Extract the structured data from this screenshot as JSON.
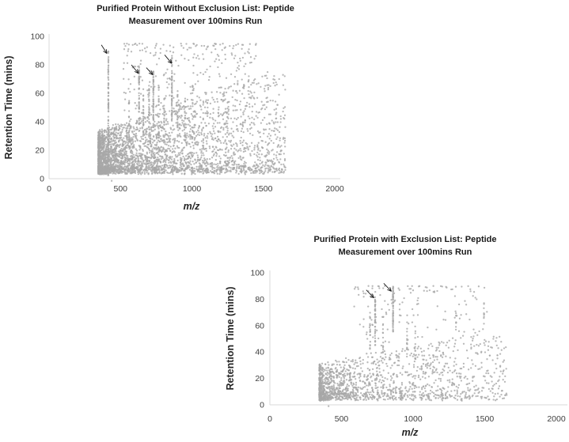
{
  "figure": {
    "background": "#ffffff",
    "description": "Two scatter plots comparing peptide measurements with and without an exclusion list"
  },
  "chart_data": [
    {
      "type": "scatter",
      "title_lines": [
        "Purified Protein Without Exclusion List: Peptide",
        "Measurement over 100mins Run"
      ],
      "xlabel": "m/z",
      "ylabel": "Retention Time (mins)",
      "xlim": [
        0,
        2000
      ],
      "ylim": [
        0,
        100
      ],
      "x_ticks": [
        0,
        500,
        1000,
        1500,
        2000
      ],
      "y_ticks": [
        0,
        20,
        40,
        60,
        80,
        100
      ],
      "grid": false,
      "legend": "none",
      "x_data_range": [
        345,
        1655
      ],
      "marker_color": "#a8a8a8",
      "axis_line_color": "#d9d9d9",
      "tick_label_color": "#3f3f3f",
      "title_color": "#1a1a1a",
      "arrow_color": "#1a1a1a",
      "annotated_streaks_mz": [
        415,
        630,
        730,
        860
      ],
      "arrows": [
        {
          "from": [
            366,
            94
          ],
          "to": [
            405,
            88
          ]
        },
        {
          "from": [
            576,
            80
          ],
          "to": [
            626,
            74
          ]
        },
        {
          "from": [
            681,
            78
          ],
          "to": [
            726,
            73
          ]
        },
        {
          "from": [
            809,
            87
          ],
          "to": [
            859,
            81
          ]
        }
      ],
      "generator": {
        "seed": 20471,
        "cloud": {
          "n": 3400,
          "x_min": 345,
          "x_span": 1310,
          "x_pow": 2.3,
          "y_min": 5,
          "y_pow": 2.0,
          "cap_base": 33,
          "cap_slope": 0.035,
          "cap_max": 75,
          "jitter": 4
        },
        "high": {
          "n": 260,
          "x0": 520,
          "x1": 1460,
          "y0": 45,
          "y1": 95,
          "pow": 1.7
        },
        "streaks": [
          {
            "x": 415,
            "y0": 2,
            "y1": 91,
            "n": 95
          },
          {
            "x": 630,
            "y0": 38,
            "y1": 79,
            "n": 55
          },
          {
            "x": 730,
            "y0": 35,
            "y1": 77,
            "n": 60
          },
          {
            "x": 860,
            "y0": 40,
            "y1": 87,
            "n": 55
          },
          {
            "x": 560,
            "y0": 22,
            "y1": 55,
            "n": 24
          },
          {
            "x": 660,
            "y0": 30,
            "y1": 64,
            "n": 28
          },
          {
            "x": 700,
            "y0": 28,
            "y1": 66,
            "n": 30
          },
          {
            "x": 768,
            "y0": 28,
            "y1": 70,
            "n": 26
          },
          {
            "x": 806,
            "y0": 26,
            "y1": 60,
            "n": 20
          },
          {
            "x": 900,
            "y0": 28,
            "y1": 62,
            "n": 18
          },
          {
            "x": 952,
            "y0": 24,
            "y1": 58,
            "n": 16
          },
          {
            "x": 1005,
            "y0": 28,
            "y1": 66,
            "n": 18
          },
          {
            "x": 1080,
            "y0": 20,
            "y1": 55,
            "n": 12
          }
        ],
        "extra_points": [
          {
            "x": 438,
            "y": -1.5
          }
        ]
      }
    },
    {
      "type": "scatter",
      "title_lines": [
        "Purified Protein with Exclusion List: Peptide",
        "Measurement over  100mins Run"
      ],
      "xlabel": "m/z",
      "ylabel": "Retention Time (mins)",
      "xlim": [
        0,
        2000
      ],
      "ylim": [
        0,
        100
      ],
      "x_ticks": [
        0,
        500,
        1000,
        1500,
        2000
      ],
      "y_ticks": [
        0,
        20,
        40,
        60,
        80,
        100
      ],
      "grid": false,
      "legend": "none",
      "x_data_range": [
        345,
        1655
      ],
      "marker_color": "#a8a8a8",
      "axis_line_color": "#d9d9d9",
      "tick_label_color": "#3f3f3f",
      "title_color": "#1a1a1a",
      "arrow_color": "#1a1a1a",
      "annotated_streaks_mz": [
        735,
        860
      ],
      "arrows": [
        {
          "from": [
            673,
            87
          ],
          "to": [
            726,
            81
          ]
        },
        {
          "from": [
            795,
            92
          ],
          "to": [
            848,
            86
          ]
        }
      ],
      "generator": {
        "seed": 99173,
        "cloud": {
          "n": 1550,
          "x_min": 345,
          "x_span": 1310,
          "x_pow": 2.2,
          "y_min": 5,
          "y_pow": 1.8,
          "cap_base": 30,
          "cap_slope": 0.022,
          "cap_max": 55,
          "jitter": 4
        },
        "high": {
          "n": 150,
          "x0": 560,
          "x1": 1520,
          "y0": 38,
          "y1": 90,
          "pow": 1.8
        },
        "streaks": [
          {
            "x": 735,
            "y0": 45,
            "y1": 86,
            "n": 45
          },
          {
            "x": 860,
            "y0": 55,
            "y1": 90,
            "n": 55
          },
          {
            "x": 700,
            "y0": 38,
            "y1": 70,
            "n": 16
          },
          {
            "x": 790,
            "y0": 35,
            "y1": 65,
            "n": 14
          },
          {
            "x": 958,
            "y0": 35,
            "y1": 68,
            "n": 16
          },
          {
            "x": 1015,
            "y0": 33,
            "y1": 62,
            "n": 12
          },
          {
            "x": 1300,
            "y0": 55,
            "y1": 75,
            "n": 8
          },
          {
            "x": 1495,
            "y0": 60,
            "y1": 80,
            "n": 8
          }
        ],
        "extra_points": [
          {
            "x": 410,
            "y": -1
          }
        ]
      }
    }
  ]
}
